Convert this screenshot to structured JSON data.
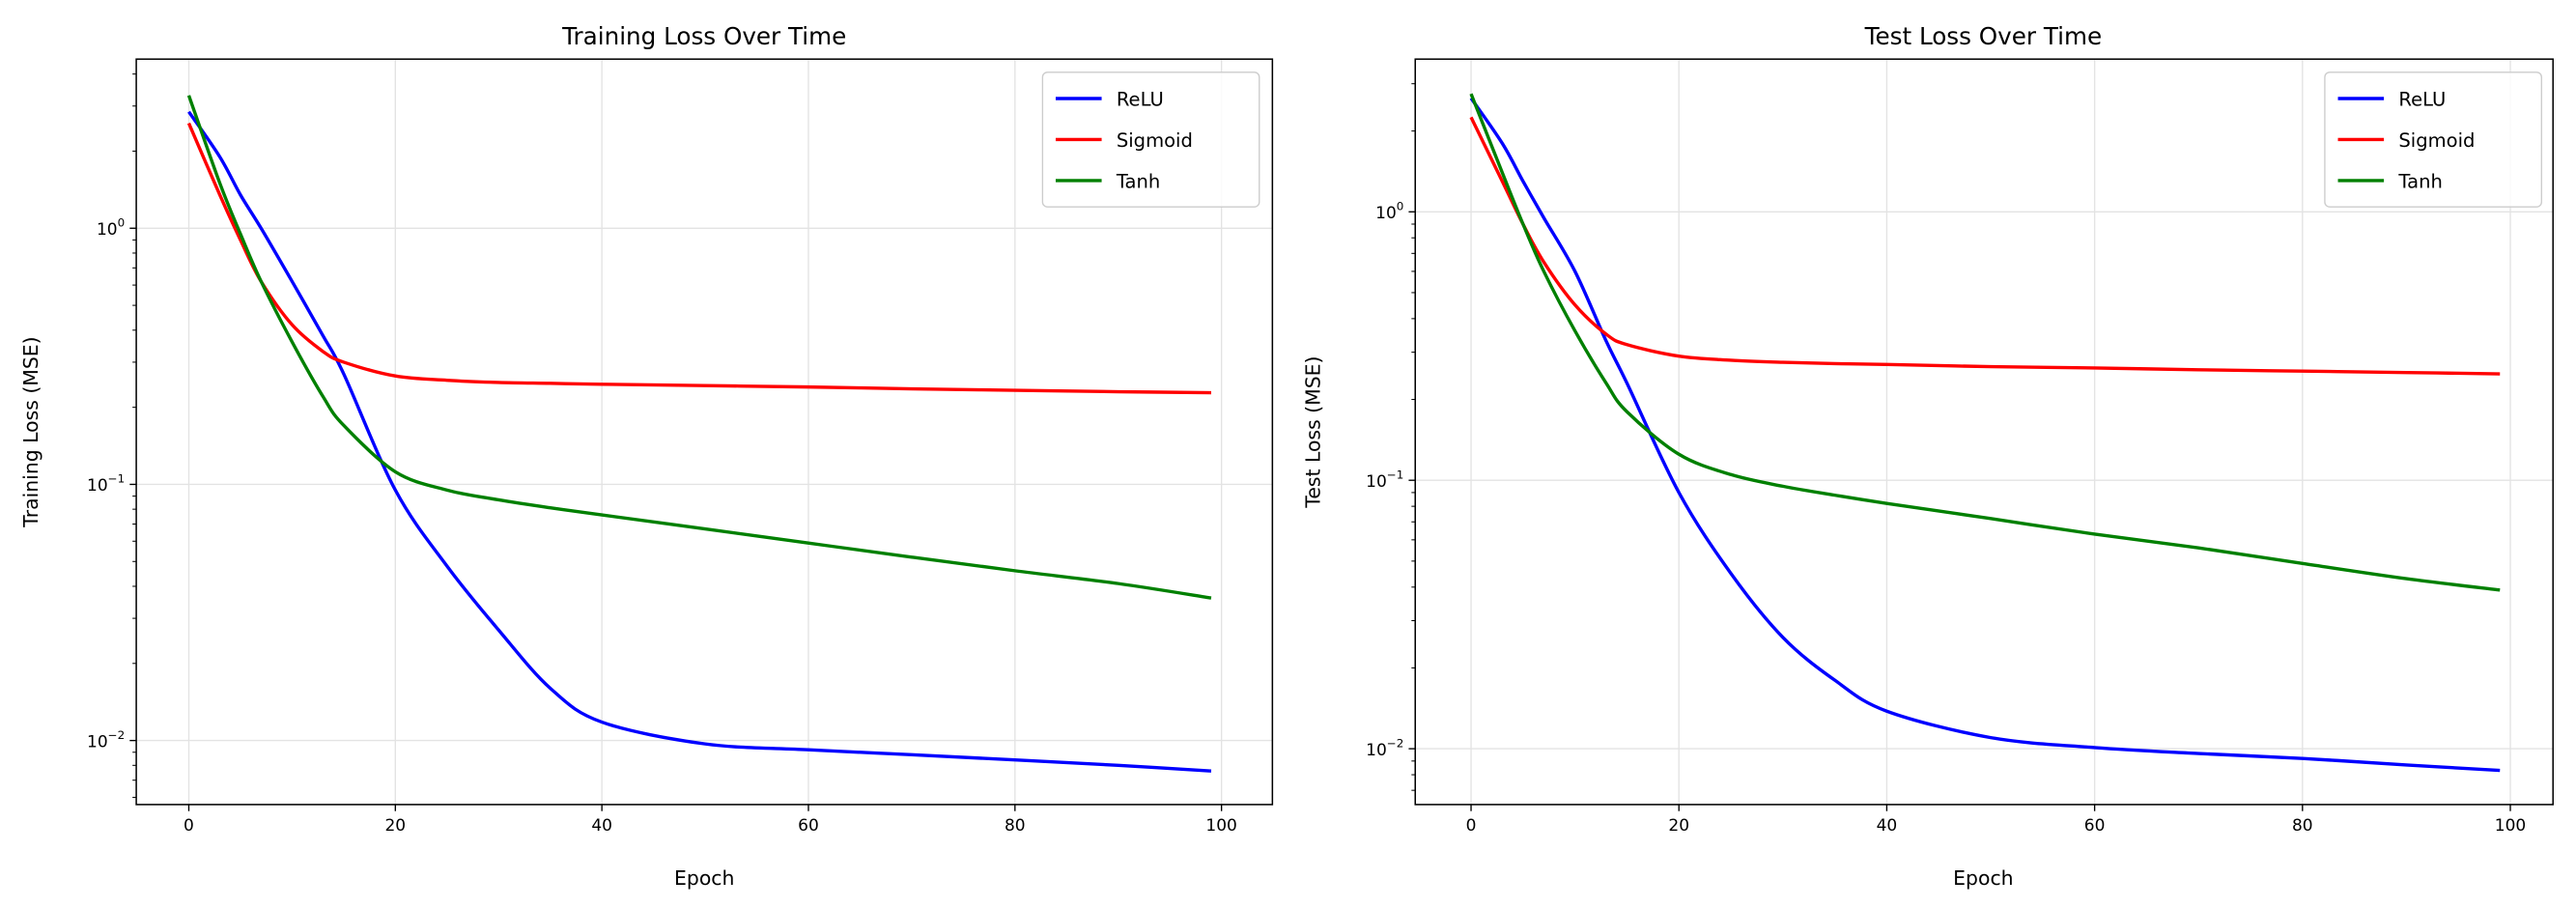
{
  "chart_data": [
    {
      "type": "line",
      "title": "Training Loss Over Time",
      "xlabel": "Epoch",
      "ylabel": "Training Loss (MSE)",
      "xlim": [
        -5,
        104
      ],
      "ylim": [
        0.0056,
        4.6
      ],
      "yscale": "log",
      "grid": true,
      "legend": "top-right",
      "xticks": [
        "0",
        "20",
        "40",
        "60",
        "80",
        "100"
      ],
      "yticks": [
        {
          "base": "10",
          "exp": "0"
        },
        {
          "base": "10",
          "exp": "−1"
        },
        {
          "base": "10",
          "exp": "−2"
        }
      ],
      "x": [
        0,
        3,
        5,
        7,
        10,
        13,
        15,
        20,
        25,
        30,
        35,
        40,
        50,
        60,
        70,
        80,
        90,
        99
      ],
      "series": [
        {
          "name": "ReLU",
          "color": "#0000ff",
          "values": [
            2.85,
            1.9,
            1.35,
            1.0,
            0.62,
            0.38,
            0.27,
            0.095,
            0.048,
            0.027,
            0.016,
            0.0118,
            0.0097,
            0.0092,
            0.0088,
            0.0084,
            0.008,
            0.0076
          ]
        },
        {
          "name": "Sigmoid",
          "color": "#ff0000",
          "values": [
            2.57,
            1.35,
            0.9,
            0.62,
            0.42,
            0.33,
            0.3,
            0.265,
            0.255,
            0.25,
            0.248,
            0.246,
            0.243,
            0.24,
            0.236,
            0.233,
            0.23,
            0.228
          ]
        },
        {
          "name": "Tanh",
          "color": "#008000",
          "values": [
            3.3,
            1.5,
            0.95,
            0.62,
            0.36,
            0.22,
            0.17,
            0.112,
            0.095,
            0.087,
            0.081,
            0.076,
            0.067,
            0.059,
            0.052,
            0.046,
            0.041,
            0.036
          ]
        }
      ]
    },
    {
      "type": "line",
      "title": "Test Loss Over Time",
      "xlabel": "Epoch",
      "ylabel": "Test Loss (MSE)",
      "xlim": [
        -5,
        104
      ],
      "ylim": [
        0.0062,
        3.7
      ],
      "yscale": "log",
      "grid": true,
      "legend": "top-right",
      "xticks": [
        "0",
        "20",
        "40",
        "60",
        "80",
        "100"
      ],
      "yticks": [
        {
          "base": "10",
          "exp": "0"
        },
        {
          "base": "10",
          "exp": "−1"
        },
        {
          "base": "10",
          "exp": "−2"
        }
      ],
      "x": [
        0,
        3,
        5,
        7,
        10,
        13,
        15,
        20,
        25,
        30,
        35,
        40,
        50,
        60,
        70,
        80,
        90,
        99
      ],
      "series": [
        {
          "name": "ReLU",
          "color": "#0000ff",
          "values": [
            2.65,
            1.8,
            1.3,
            0.95,
            0.6,
            0.33,
            0.23,
            0.09,
            0.045,
            0.026,
            0.018,
            0.0138,
            0.011,
            0.0101,
            0.0096,
            0.0092,
            0.0087,
            0.0083
          ]
        },
        {
          "name": "Sigmoid",
          "color": "#ff0000",
          "values": [
            2.25,
            1.3,
            0.9,
            0.65,
            0.45,
            0.35,
            0.32,
            0.29,
            0.28,
            0.275,
            0.272,
            0.27,
            0.265,
            0.262,
            0.258,
            0.255,
            0.252,
            0.249
          ]
        },
        {
          "name": "Tanh",
          "color": "#008000",
          "values": [
            2.75,
            1.4,
            0.9,
            0.6,
            0.36,
            0.23,
            0.18,
            0.125,
            0.105,
            0.095,
            0.088,
            0.082,
            0.072,
            0.063,
            0.056,
            0.049,
            0.043,
            0.039
          ]
        }
      ]
    }
  ]
}
